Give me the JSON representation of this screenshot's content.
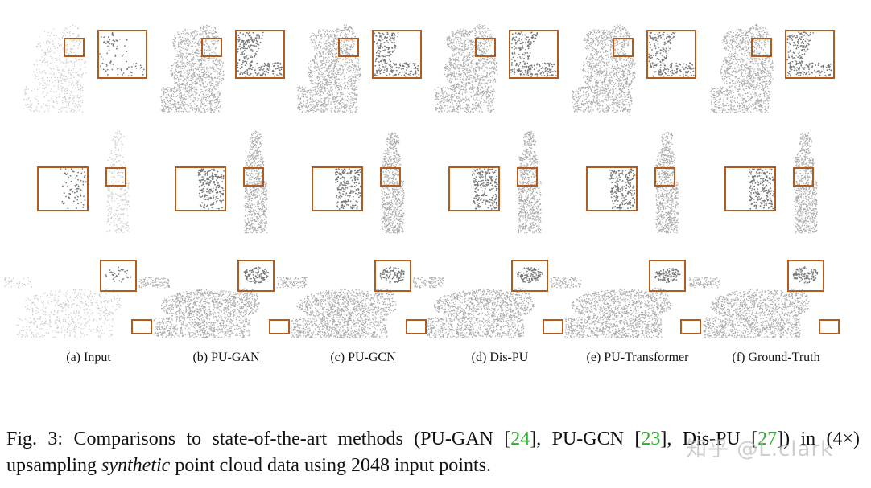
{
  "figure": {
    "columns": [
      {
        "label": "(a) Input",
        "density": "sparse"
      },
      {
        "label": "(b) PU-GAN",
        "density": "dense"
      },
      {
        "label": "(c) PU-GCN",
        "density": "dense"
      },
      {
        "label": "(d) Dis-PU",
        "density": "dense"
      },
      {
        "label": "(e) PU-Transformer",
        "density": "dense"
      },
      {
        "label": "(f) Ground-Truth",
        "density": "dense"
      }
    ],
    "rows": [
      "dragon-statue",
      "standing-figure",
      "leopard"
    ],
    "highlight_color": "#b35a1f"
  },
  "caption": {
    "prefix": "Fig. 3: Comparisons to state-of-the-art methods (PU-GAN [",
    "cite1": "24",
    "part2": "], PU-GCN [",
    "cite2": "23",
    "part3": "], Dis-PU [",
    "cite3": "27",
    "part4": "]) in (4×) upsampling ",
    "italic": "synthetic",
    "suffix": " point cloud data using 2048 input points."
  },
  "watermark": "知乎 @L.clark"
}
